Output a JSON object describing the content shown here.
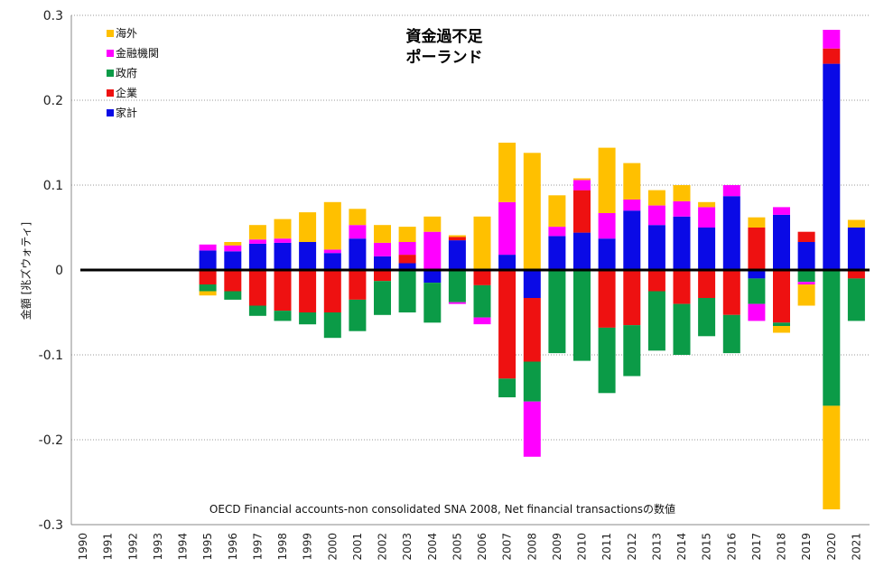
{
  "chart_data": {
    "type": "bar",
    "stacked": true,
    "title": [
      "資金過不足",
      "ポーランド"
    ],
    "ylabel": "金額 [兆ズウォティ]",
    "note": "OECD Financial accounts-non consolidated SNA 2008, Net financial transactionsの数値",
    "ylim": [
      -0.3,
      0.3
    ],
    "yticks": [
      "0.3",
      "0.2",
      "0.1",
      "0",
      "-0.1",
      "-0.2",
      "-0.3"
    ],
    "ytick_values": [
      0.3,
      0.2,
      0.1,
      0,
      -0.1,
      -0.2,
      -0.3
    ],
    "grid": true,
    "legend_position": "top-left",
    "categories": [
      "1990",
      "1991",
      "1992",
      "1993",
      "1994",
      "1995",
      "1996",
      "1997",
      "1998",
      "1999",
      "2000",
      "2001",
      "2002",
      "2003",
      "2004",
      "2005",
      "2006",
      "2007",
      "2008",
      "2009",
      "2010",
      "2011",
      "2012",
      "2013",
      "2014",
      "2015",
      "2016",
      "2017",
      "2018",
      "2019",
      "2020",
      "2021"
    ],
    "series": [
      {
        "name": "家計",
        "color": "#0a0ae6",
        "values": [
          0,
          0,
          0,
          0,
          0,
          0.023,
          0.022,
          0.031,
          0.032,
          0.033,
          0.02,
          0.037,
          0.016,
          0.008,
          -0.015,
          0.035,
          0,
          0.018,
          -0.033,
          0.04,
          0.044,
          0.037,
          0.07,
          0.053,
          0.063,
          0.05,
          0.087,
          -0.01,
          0.065,
          0.033,
          0.243,
          0.05
        ]
      },
      {
        "name": "企業",
        "color": "#ee1111",
        "values": [
          0,
          0,
          0,
          0,
          0,
          -0.017,
          -0.025,
          -0.042,
          -0.048,
          -0.05,
          -0.05,
          -0.035,
          -0.013,
          0.01,
          0,
          0.004,
          -0.018,
          -0.128,
          -0.075,
          0,
          0.05,
          -0.068,
          -0.065,
          -0.025,
          -0.04,
          -0.033,
          -0.053,
          0.05,
          -0.062,
          0.012,
          0.018,
          -0.01
        ]
      },
      {
        "name": "政府",
        "color": "#0b9b47",
        "values": [
          0,
          0,
          0,
          0,
          0,
          -0.008,
          -0.01,
          -0.012,
          -0.012,
          -0.014,
          -0.03,
          -0.037,
          -0.04,
          -0.05,
          -0.047,
          -0.038,
          -0.038,
          -0.022,
          -0.047,
          -0.098,
          -0.107,
          -0.077,
          -0.06,
          -0.07,
          -0.06,
          -0.045,
          -0.045,
          -0.03,
          -0.004,
          -0.014,
          -0.16,
          -0.05
        ]
      },
      {
        "name": "金融機関",
        "color": "#ff00ff",
        "values": [
          0,
          0,
          0,
          0,
          0,
          0.007,
          0.007,
          0.005,
          0.005,
          0,
          0.004,
          0.016,
          0.016,
          0.015,
          0.045,
          -0.002,
          -0.008,
          0.062,
          -0.065,
          0.011,
          0.012,
          0.03,
          0.013,
          0.023,
          0.018,
          0.024,
          0.013,
          -0.02,
          0.009,
          -0.003,
          0.022,
          0
        ]
      },
      {
        "name": "海外",
        "color": "#ffc000",
        "values": [
          0,
          0,
          0,
          0,
          0,
          -0.005,
          0.004,
          0.017,
          0.023,
          0.035,
          0.056,
          0.019,
          0.021,
          0.018,
          0.018,
          0.002,
          0.063,
          0.07,
          0.138,
          0.037,
          0.002,
          0.077,
          0.043,
          0.018,
          0.019,
          0.006,
          0,
          0.012,
          -0.008,
          -0.025,
          -0.122,
          0.009
        ]
      }
    ],
    "legend_order": [
      "海外",
      "金融機関",
      "政府",
      "企業",
      "家計"
    ]
  }
}
